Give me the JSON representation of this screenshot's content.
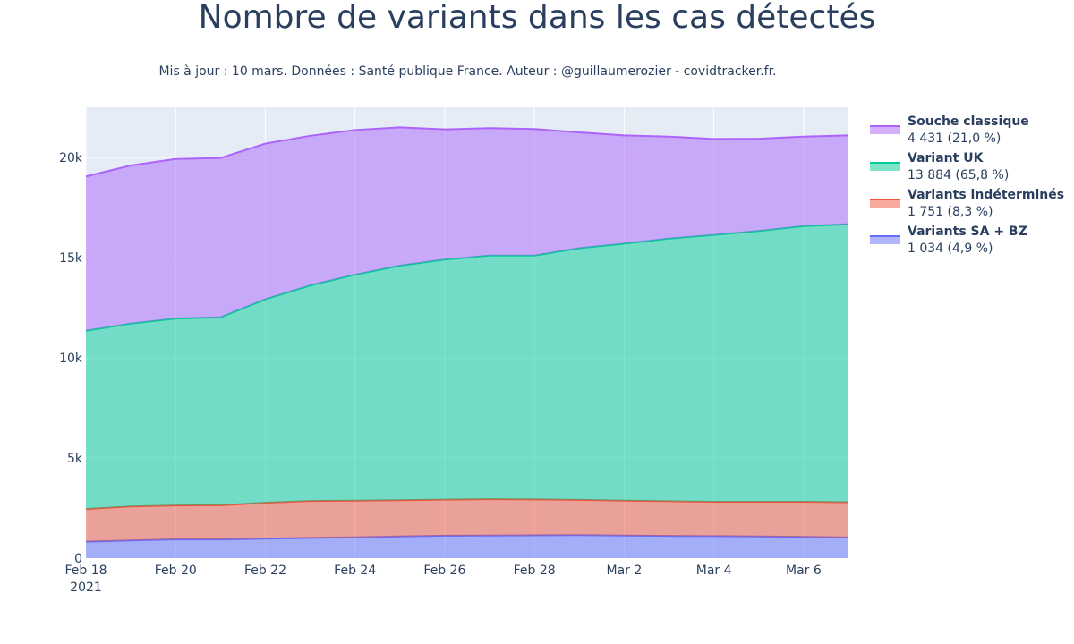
{
  "chart_data": {
    "type": "area",
    "stacked": true,
    "title": "Nombre de variants dans les cas détectés",
    "subtitle": "Mis à jour : 10 mars. Données : Santé publique France. Auteur : @guillaumerozier - covidtracker.fr.",
    "x": [
      "2021-02-18",
      "2021-02-19",
      "2021-02-20",
      "2021-02-21",
      "2021-02-22",
      "2021-02-23",
      "2021-02-24",
      "2021-02-25",
      "2021-02-26",
      "2021-02-27",
      "2021-02-28",
      "2021-03-01",
      "2021-03-02",
      "2021-03-03",
      "2021-03-04",
      "2021-03-05",
      "2021-03-06",
      "2021-03-07"
    ],
    "x_ticks": [
      {
        "date": "2021-02-18",
        "label": "Feb 18",
        "sublabel": "2021"
      },
      {
        "date": "2021-02-20",
        "label": "Feb 20"
      },
      {
        "date": "2021-02-22",
        "label": "Feb 22"
      },
      {
        "date": "2021-02-24",
        "label": "Feb 24"
      },
      {
        "date": "2021-02-26",
        "label": "Feb 26"
      },
      {
        "date": "2021-02-28",
        "label": "Feb 28"
      },
      {
        "date": "2021-03-02",
        "label": "Mar 2"
      },
      {
        "date": "2021-03-04",
        "label": "Mar 4"
      },
      {
        "date": "2021-03-06",
        "label": "Mar 6"
      }
    ],
    "y_ticks": [
      {
        "value": 0,
        "label": "0"
      },
      {
        "value": 5000,
        "label": "5k"
      },
      {
        "value": 10000,
        "label": "10k"
      },
      {
        "value": 15000,
        "label": "15k"
      },
      {
        "value": 20000,
        "label": "20k"
      }
    ],
    "ylim": [
      0,
      22500
    ],
    "grid": true,
    "legend_position": "right",
    "background_color": "#e5ecf6",
    "series": [
      {
        "name": "Variants SA + BZ",
        "legend_value": "1 034 (4,9 %)",
        "color": "#636efa",
        "fill": "rgba(99,110,250,0.5)",
        "values": [
          820,
          880,
          940,
          930,
          970,
          1010,
          1040,
          1080,
          1120,
          1130,
          1140,
          1150,
          1130,
          1110,
          1100,
          1080,
          1060,
          1034
        ]
      },
      {
        "name": "Variants indéterminés",
        "legend_value": "1 751 (8,3 %)",
        "color": "#ef553b",
        "fill": "rgba(239,85,59,0.5)",
        "values": [
          1630,
          1700,
          1690,
          1710,
          1790,
          1840,
          1830,
          1810,
          1800,
          1810,
          1790,
          1760,
          1740,
          1730,
          1710,
          1730,
          1750,
          1751
        ]
      },
      {
        "name": "Variant UK",
        "legend_value": "13 884 (65,8 %)",
        "color": "#00cc96",
        "fill": "rgba(0,204,150,0.5)",
        "values": [
          8900,
          9130,
          9330,
          9380,
          10160,
          10760,
          11280,
          11710,
          11980,
          12160,
          12170,
          12560,
          12830,
          13110,
          13320,
          13520,
          13760,
          13884
        ]
      },
      {
        "name": "Souche classique",
        "legend_value": "4 431 (21,0 %)",
        "color": "#ab63fa",
        "fill": "rgba(171,99,250,0.5)",
        "values": [
          7700,
          7890,
          7960,
          7950,
          7770,
          7470,
          7220,
          6900,
          6500,
          6360,
          6320,
          5780,
          5400,
          5090,
          4790,
          4600,
          4470,
          4431
        ]
      }
    ]
  }
}
